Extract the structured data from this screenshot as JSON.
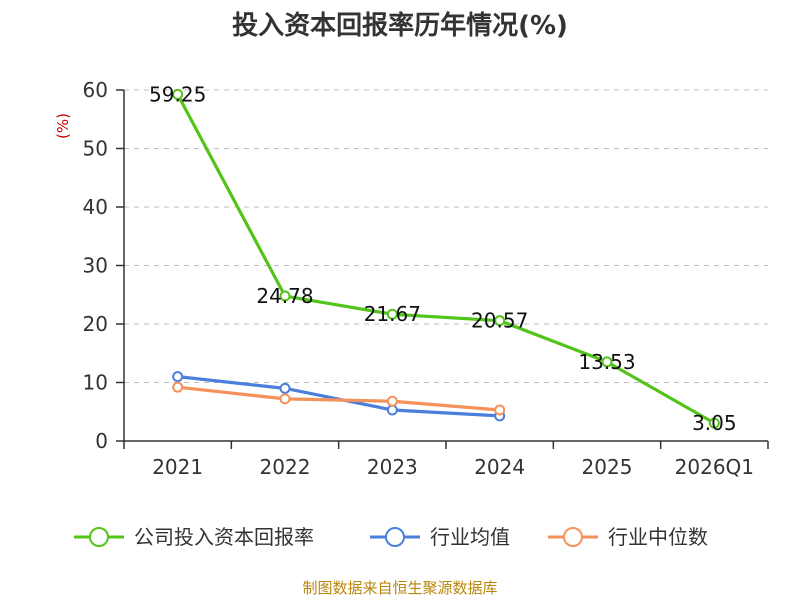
{
  "chart_data": {
    "type": "line",
    "title": "投入资本回报率历年情况(%)",
    "unit_label": "(%)",
    "categories": [
      "2021",
      "2022",
      "2023",
      "2024",
      "2025",
      "2026Q1"
    ],
    "y_ticks": [
      "0",
      "10",
      "20",
      "30",
      "40",
      "50",
      "60"
    ],
    "ylim": [
      0,
      60
    ],
    "grid": true,
    "legend_position": "bottom",
    "series": [
      {
        "name": "公司投入资本回报率",
        "color": "#52c41a",
        "values": [
          59.25,
          24.78,
          21.67,
          20.57,
          13.53,
          3.05
        ],
        "labels": [
          "59.25",
          "24.78",
          "21.67",
          "20.57",
          "13.53",
          "3.05"
        ]
      },
      {
        "name": "行业均值",
        "color": "#4a7fdc",
        "values": [
          11.0,
          9.0,
          5.3,
          4.3,
          null,
          null
        ]
      },
      {
        "name": "行业中位数",
        "color": "#f5925b",
        "values": [
          9.2,
          7.2,
          6.8,
          5.3,
          null,
          null
        ]
      }
    ],
    "source": "制图数据来自恒生聚源数据库"
  }
}
